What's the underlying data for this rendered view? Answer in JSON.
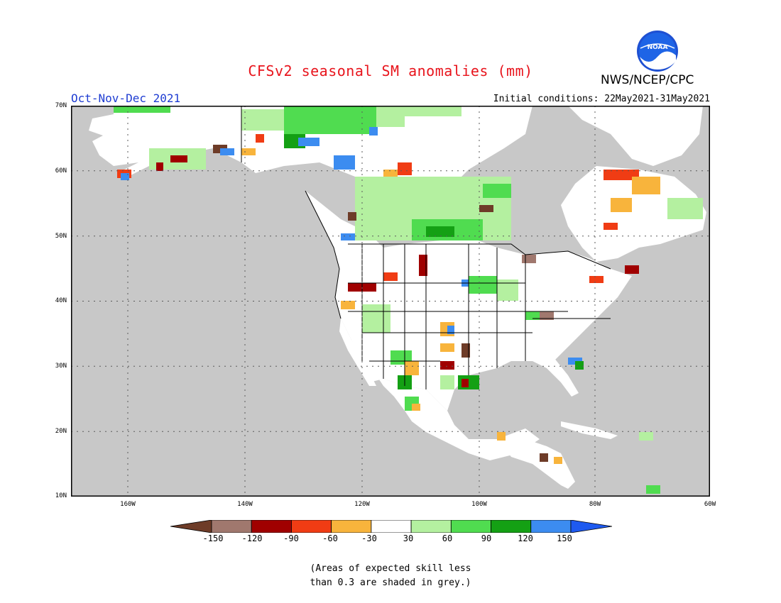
{
  "title": "CFSv2 seasonal SM anomalies (mm)",
  "season": "Oct-Nov-Dec 2021",
  "initial_conditions": "Initial conditions: 22May2021-31May2021",
  "agency": "NWS/NCEP/CPC",
  "logo_text": "NOAA",
  "lat_labels": [
    "70N",
    "60N",
    "50N",
    "40N",
    "30N",
    "20N",
    "10N"
  ],
  "lon_labels": [
    "160W",
    "140W",
    "120W",
    "100W",
    "80W",
    "60W"
  ],
  "legend": {
    "labels": [
      "-150",
      "-120",
      "-90",
      "-60",
      "-30",
      "30",
      "60",
      "90",
      "120",
      "150"
    ],
    "colors": [
      "#6e3c28",
      "#a0786e",
      "#a00000",
      "#f03c14",
      "#f8b43c",
      "#ffffff",
      "#b4f0a0",
      "#50dc50",
      "#14a014",
      "#3c8cf0",
      "#1e5af0"
    ]
  },
  "colors": {
    "land": "#ffffff",
    "low_skill": "#c8c8c8",
    "grid": "#5a5a5a",
    "title": "#e8141c",
    "season": "#1e3cd2"
  },
  "note": [
    "(Areas of expected skill less",
    "than 0.3 are shaded in grey.)"
  ]
}
